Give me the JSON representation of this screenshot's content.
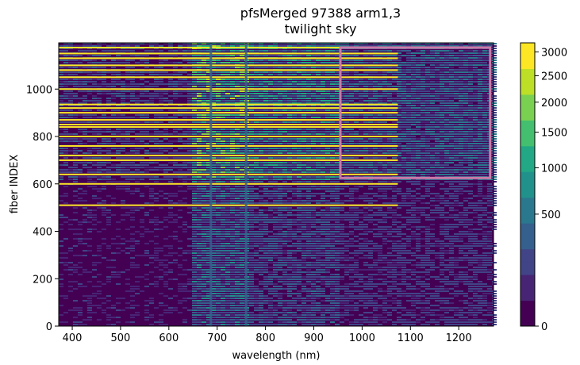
{
  "chart_data": {
    "type": "heatmap",
    "title_line1": "pfsMerged  97388 arm1,3",
    "title_line2": "twilight sky",
    "xlabel": "wavelength (nm)",
    "ylabel": "fiber INDEX",
    "xlim": [
      372,
      1272
    ],
    "ylim": [
      0,
      1195
    ],
    "xticks": [
      400,
      500,
      600,
      700,
      800,
      900,
      1000,
      1100,
      1200
    ],
    "yticks": [
      0,
      200,
      400,
      600,
      800,
      1000
    ],
    "colorbar": {
      "colormap": "viridis",
      "scale": "sqrt",
      "vmin": 0,
      "vmax": 3200,
      "ticks": [
        0,
        500,
        1000,
        1500,
        2000,
        2500,
        3000
      ]
    },
    "highlight_box": {
      "x_range": [
        955,
        1265
      ],
      "y_range": [
        625,
        1175
      ],
      "color": "#cc79a7"
    },
    "absorption_lines_nm": [
      687,
      760
    ],
    "saturated_fiber_rows": [
      510,
      600,
      640,
      700,
      720,
      760,
      800,
      840,
      850,
      870,
      900,
      920,
      935,
      1000,
      1050,
      1080,
      1100,
      1130,
      1150,
      1175
    ]
  }
}
